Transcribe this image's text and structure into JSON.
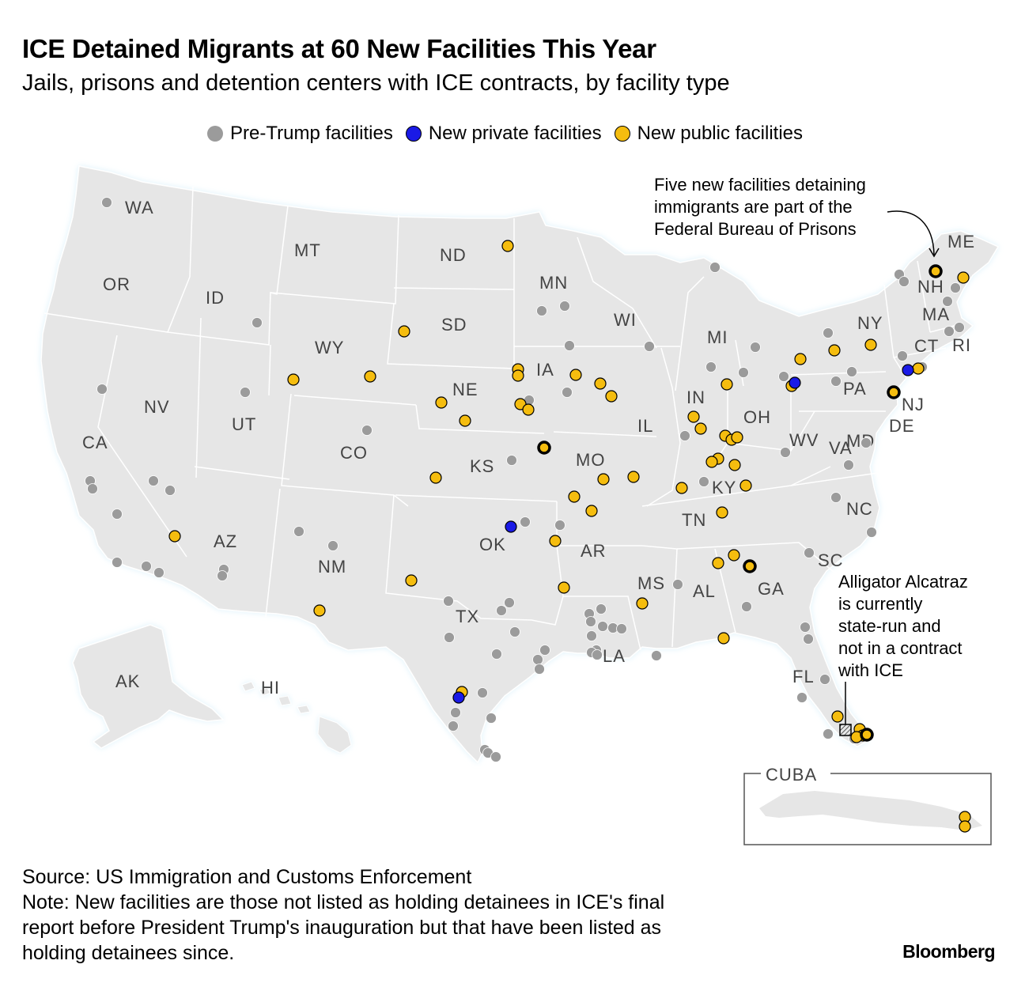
{
  "title": "ICE Detained Migrants at 60 New Facilities This Year",
  "subtitle": "Jails, prisons and detention centers with ICE contracts, by facility type",
  "legend": [
    {
      "label": "Pre-Trump facilities",
      "color": "#9b9b9b"
    },
    {
      "label": "New private facilities",
      "color": "#1a1ae6"
    },
    {
      "label": "New public facilities",
      "color": "#f5bd0f"
    }
  ],
  "states": [
    "WA",
    "OR",
    "CA",
    "NV",
    "ID",
    "MT",
    "WY",
    "UT",
    "AZ",
    "CO",
    "NM",
    "ND",
    "SD",
    "NE",
    "KS",
    "OK",
    "TX",
    "MN",
    "IA",
    "MO",
    "AR",
    "LA",
    "WI",
    "IL",
    "MI",
    "IN",
    "KY",
    "TN",
    "MS",
    "AL",
    "OH",
    "GA",
    "FL",
    "SC",
    "NC",
    "VA",
    "WV",
    "PA",
    "NY",
    "MD",
    "DE",
    "NJ",
    "CT",
    "RI",
    "MA",
    "NH",
    "ME",
    "AK",
    "HI"
  ],
  "inset_label": "CUBA",
  "annotations": {
    "bop": [
      "Five new facilities detaining",
      "immigrants are part of the",
      "Federal Bureau of Prisons"
    ],
    "alligator": [
      "Alligator Alcatraz",
      "is currently",
      "state-run and",
      "not in a contract",
      "with ICE"
    ]
  },
  "footer": {
    "source": "Source: US Immigration and Customs Enforcement",
    "note": [
      "Note: New facilities are those not listed as holding detainees in ICE's final",
      "report before President Trump's inauguration but that have been listed as",
      "holding detainees since."
    ]
  },
  "brand": "Bloomberg",
  "colors": {
    "land": "#e6e6e6",
    "border": "#ffffff",
    "pre_trump": "#9b9b9b",
    "private": "#1a1ae6",
    "public": "#f5bd0f"
  }
}
